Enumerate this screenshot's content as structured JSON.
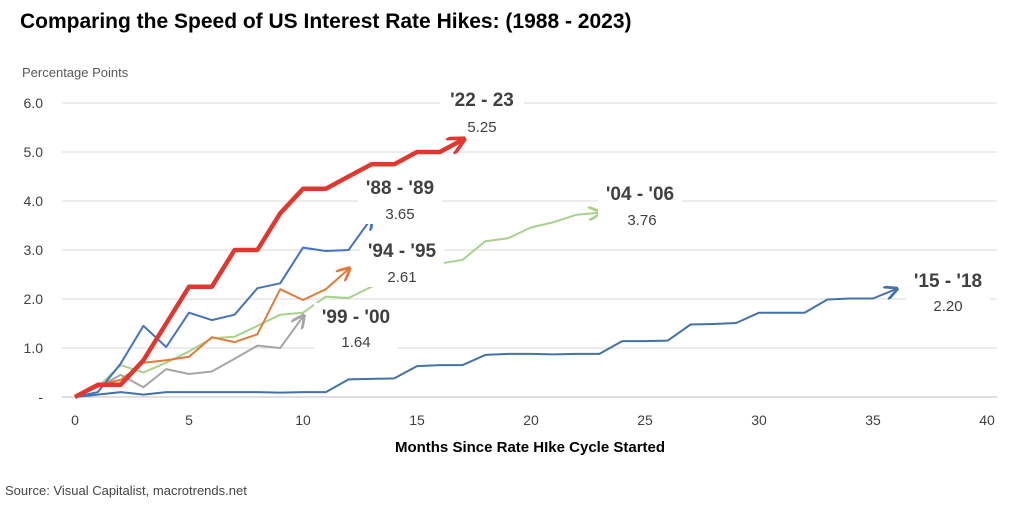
{
  "title": "Comparing the Speed of US Interest Rate Hikes: (1988 - 2023)",
  "source": "Source:  Visual Capitalist, macrotrends.net",
  "chart_data": {
    "type": "line",
    "ylabel": "Percentage Points",
    "xlabel": "Months Since Rate HIke Cycle Started",
    "xlim": [
      0,
      40
    ],
    "ylim": [
      0,
      6
    ],
    "xticks": [
      "0",
      "5",
      "10",
      "15",
      "20",
      "25",
      "30",
      "35",
      "40"
    ],
    "yticks": [
      "-",
      "1.0",
      "2.0",
      "3.0",
      "4.0",
      "5.0",
      "6.0"
    ],
    "grid": "horizontal",
    "series": [
      {
        "name": "'15 - '18",
        "label": "2.20",
        "color": "#4472a8",
        "width": 2,
        "values": [
          [
            0,
            0
          ],
          [
            1,
            0.05
          ],
          [
            2,
            0.1
          ],
          [
            3,
            0.05
          ],
          [
            4,
            0.1
          ],
          [
            5,
            0.1
          ],
          [
            6,
            0.1
          ],
          [
            7,
            0.1
          ],
          [
            8,
            0.1
          ],
          [
            9,
            0.09
          ],
          [
            10,
            0.1
          ],
          [
            11,
            0.1
          ],
          [
            12,
            0.36
          ],
          [
            13,
            0.37
          ],
          [
            14,
            0.38
          ],
          [
            15,
            0.63
          ],
          [
            16,
            0.65
          ],
          [
            17,
            0.65
          ],
          [
            18,
            0.86
          ],
          [
            19,
            0.88
          ],
          [
            20,
            0.88
          ],
          [
            21,
            0.87
          ],
          [
            22,
            0.88
          ],
          [
            23,
            0.88
          ],
          [
            24,
            1.14
          ],
          [
            25,
            1.14
          ],
          [
            26,
            1.15
          ],
          [
            27,
            1.48
          ],
          [
            28,
            1.49
          ],
          [
            29,
            1.51
          ],
          [
            30,
            1.72
          ],
          [
            31,
            1.72
          ],
          [
            32,
            1.72
          ],
          [
            33,
            1.99
          ],
          [
            34,
            2.01
          ],
          [
            35,
            2.01
          ],
          [
            36,
            2.2
          ]
        ]
      },
      {
        "name": "'04 - '06",
        "label": "3.76",
        "color": "#a9d18e",
        "width": 2,
        "values": [
          [
            0,
            0
          ],
          [
            1,
            0.2
          ],
          [
            2,
            0.65
          ],
          [
            3,
            0.5
          ],
          [
            4,
            0.7
          ],
          [
            5,
            0.93
          ],
          [
            6,
            1.2
          ],
          [
            7,
            1.23
          ],
          [
            8,
            1.45
          ],
          [
            9,
            1.68
          ],
          [
            10,
            1.72
          ],
          [
            11,
            2.05
          ],
          [
            12,
            2.02
          ],
          [
            13,
            2.25
          ],
          [
            14,
            2.4
          ],
          [
            15,
            2.55
          ],
          [
            16,
            2.72
          ],
          [
            17,
            2.8
          ],
          [
            18,
            3.18
          ],
          [
            19,
            3.24
          ],
          [
            20,
            3.46
          ],
          [
            21,
            3.57
          ],
          [
            22,
            3.72
          ],
          [
            23,
            3.76
          ]
        ]
      },
      {
        "name": "'99 - '00",
        "label": "1.64",
        "color": "#a6a6a6",
        "width": 2,
        "values": [
          [
            0,
            0
          ],
          [
            1,
            0.2
          ],
          [
            2,
            0.45
          ],
          [
            3,
            0.2
          ],
          [
            4,
            0.57
          ],
          [
            5,
            0.47
          ],
          [
            6,
            0.52
          ],
          [
            7,
            0.78
          ],
          [
            8,
            1.05
          ],
          [
            9,
            1.0
          ],
          [
            10,
            1.64
          ]
        ]
      },
      {
        "name": "'94 - '95",
        "label": "2.61",
        "color": "#e07b39",
        "width": 2,
        "values": [
          [
            0,
            0
          ],
          [
            1,
            0.25
          ],
          [
            2,
            0.35
          ],
          [
            3,
            0.7
          ],
          [
            4,
            0.75
          ],
          [
            5,
            0.82
          ],
          [
            6,
            1.22
          ],
          [
            7,
            1.12
          ],
          [
            8,
            1.28
          ],
          [
            9,
            2.2
          ],
          [
            10,
            1.98
          ],
          [
            11,
            2.2
          ],
          [
            12,
            2.61
          ]
        ]
      },
      {
        "name": "'88 - '89",
        "label": "3.65",
        "color": "#4472c4",
        "width": 2,
        "values": [
          [
            0,
            0
          ],
          [
            1,
            0.1
          ],
          [
            2,
            0.68
          ],
          [
            3,
            1.45
          ],
          [
            4,
            1.02
          ],
          [
            5,
            1.72
          ],
          [
            6,
            1.57
          ],
          [
            7,
            1.68
          ],
          [
            8,
            2.22
          ],
          [
            9,
            2.32
          ],
          [
            10,
            3.05
          ],
          [
            11,
            2.98
          ],
          [
            12,
            3.0
          ],
          [
            13,
            3.65
          ]
        ]
      },
      {
        "name": "'22 - 23",
        "label": "5.25",
        "color": "#e0382e",
        "width": 4.5,
        "values": [
          [
            0,
            0
          ],
          [
            1,
            0.25
          ],
          [
            2,
            0.25
          ],
          [
            3,
            0.75
          ],
          [
            4,
            1.5
          ],
          [
            5,
            2.25
          ],
          [
            6,
            2.25
          ],
          [
            7,
            3.0
          ],
          [
            8,
            3.0
          ],
          [
            9,
            3.75
          ],
          [
            10,
            4.25
          ],
          [
            11,
            4.25
          ],
          [
            12,
            4.5
          ],
          [
            13,
            4.75
          ],
          [
            14,
            4.75
          ],
          [
            15,
            5.0
          ],
          [
            16,
            5.0
          ],
          [
            17,
            5.25
          ]
        ]
      }
    ]
  }
}
